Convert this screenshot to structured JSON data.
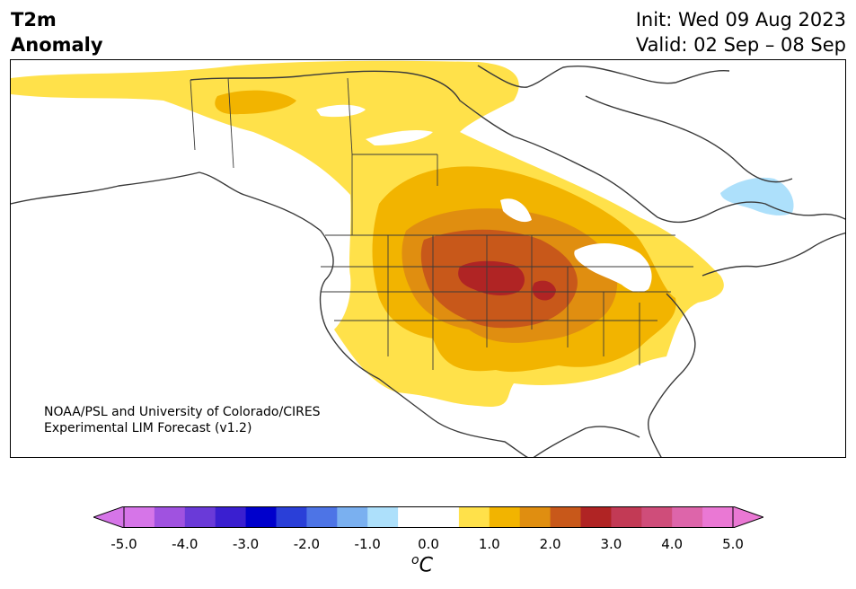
{
  "header": {
    "title_line1": "T2m",
    "title_line2": "Anomaly",
    "init_text": "Init: Wed 09 Aug 2023",
    "valid_text": "Valid: 02 Sep – 08 Sep"
  },
  "credit": {
    "line1": "NOAA/PSL and University of Colorado/CIRES",
    "line2": "Experimental LIM Forecast (v1.2)"
  },
  "colorbar": {
    "ticks": [
      "-5.0",
      "-4.0",
      "-3.0",
      "-2.0",
      "-1.0",
      "0.0",
      "1.0",
      "2.0",
      "3.0",
      "4.0",
      "5.0"
    ],
    "unit_sup": "o",
    "unit_main": "C",
    "colors": [
      "#d675e8",
      "#a052e0",
      "#6a3ad8",
      "#3a1fd0",
      "#0000cc",
      "#2a3fd8",
      "#4d74e6",
      "#7ab0f0",
      "#ade0fb",
      "#ffffff",
      "#ffffff",
      "#ffe14a",
      "#f2b400",
      "#e08e10",
      "#c8581a",
      "#b02424",
      "#c23a55",
      "#cf4d7a",
      "#dd65aa",
      "#ea78d4"
    ]
  },
  "map": {
    "region": "North America",
    "anomaly_colors": {
      "c05": "#ffe14a",
      "c10": "#f2b400",
      "c15": "#e08e10",
      "c20": "#c8581a",
      "c25": "#b02424",
      "cold": "#ade0fb"
    }
  }
}
